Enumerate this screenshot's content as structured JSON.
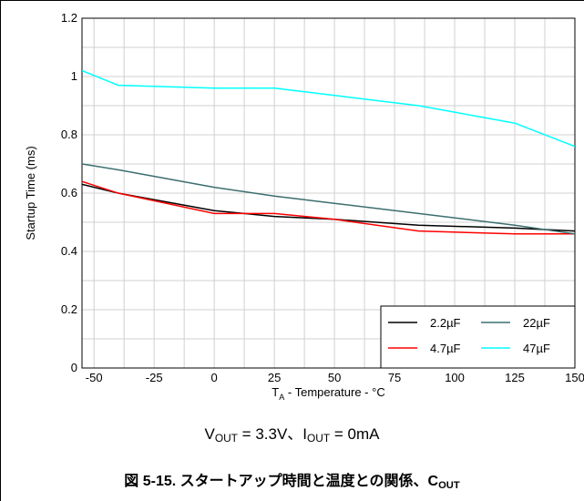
{
  "chart_data": {
    "type": "line",
    "xlabel_main": "T",
    "xlabel_sub": "A",
    "xlabel_rest": " - Temperature - °C",
    "ylabel": "Startup Time (ms)",
    "xlim": [
      -55,
      150
    ],
    "ylim": [
      0,
      1.2
    ],
    "x_ticks": [
      -50,
      -25,
      0,
      25,
      50,
      75,
      100,
      125,
      150
    ],
    "x_tick_labels": [
      "-50",
      "-25",
      "0",
      "25",
      "50",
      "75",
      "100",
      "125",
      "150"
    ],
    "y_ticks": [
      0,
      0.2,
      0.4,
      0.6,
      0.8,
      1,
      1.2
    ],
    "y_tick_labels": [
      "0",
      "0.2",
      "0.4",
      "0.6",
      "0.8",
      "1",
      "1.2"
    ],
    "grid": true,
    "legend_position": "bottom-right",
    "series": [
      {
        "name": "2.2µF",
        "color": "#000000",
        "x": [
          -55,
          -40,
          0,
          25,
          50,
          85,
          125,
          150
        ],
        "y": [
          0.63,
          0.6,
          0.54,
          0.52,
          0.51,
          0.49,
          0.48,
          0.47
        ]
      },
      {
        "name": "4.7µF",
        "color": "#ff0000",
        "x": [
          -55,
          -40,
          0,
          25,
          50,
          85,
          125,
          150
        ],
        "y": [
          0.64,
          0.6,
          0.53,
          0.53,
          0.51,
          0.47,
          0.46,
          0.46
        ]
      },
      {
        "name": "22µF",
        "color": "#3c6e6e",
        "x": [
          -55,
          -40,
          0,
          25,
          50,
          85,
          125,
          150
        ],
        "y": [
          0.7,
          0.68,
          0.62,
          0.59,
          0.565,
          0.53,
          0.49,
          0.46
        ]
      },
      {
        "name": "47µF",
        "color": "#00ffff",
        "x": [
          -55,
          -40,
          0,
          25,
          50,
          85,
          125,
          150
        ],
        "y": [
          1.02,
          0.97,
          0.96,
          0.96,
          0.935,
          0.9,
          0.84,
          0.76
        ]
      }
    ]
  },
  "condition": {
    "v": "V",
    "v_sub": "OUT",
    "v_rest": " = 3.3V、I",
    "i_sub": "OUT",
    "i_rest": " = 0mA"
  },
  "caption": {
    "main": "図 5-15. スタートアップ時間と温度との関係、C",
    "sub": "OUT"
  }
}
